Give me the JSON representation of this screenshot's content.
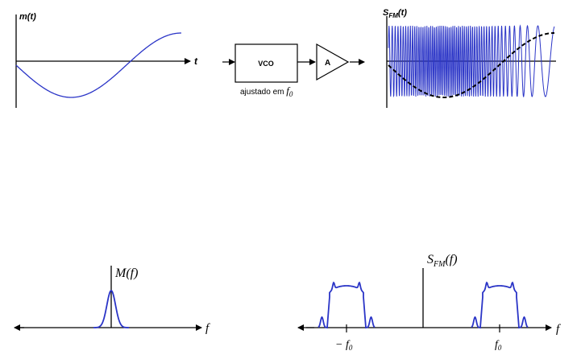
{
  "top": {
    "message": {
      "label": "m(t)",
      "axis_label": "t"
    },
    "vco": {
      "label": "VCO",
      "caption_prefix": "ajustado em ",
      "caption_symbol": "f",
      "caption_sub": "0"
    },
    "amp": {
      "label": "A"
    },
    "fm": {
      "label_main": "S",
      "label_sub": "FM",
      "label_tail": "(t)"
    }
  },
  "bottom": {
    "message_spectrum": {
      "label": "M(f)",
      "axis_label": "f"
    },
    "fm_spectrum": {
      "label_main": "S",
      "label_sub": "FM",
      "label_tail": "(f)",
      "axis_label": "f",
      "tick_neg_prefix": "− f",
      "tick_neg_sub": "0",
      "tick_pos_prefix": "f",
      "tick_pos_sub": "0"
    }
  },
  "colors": {
    "signal": "#2b35c7",
    "axis": "#000000",
    "envelope": "#000000"
  }
}
